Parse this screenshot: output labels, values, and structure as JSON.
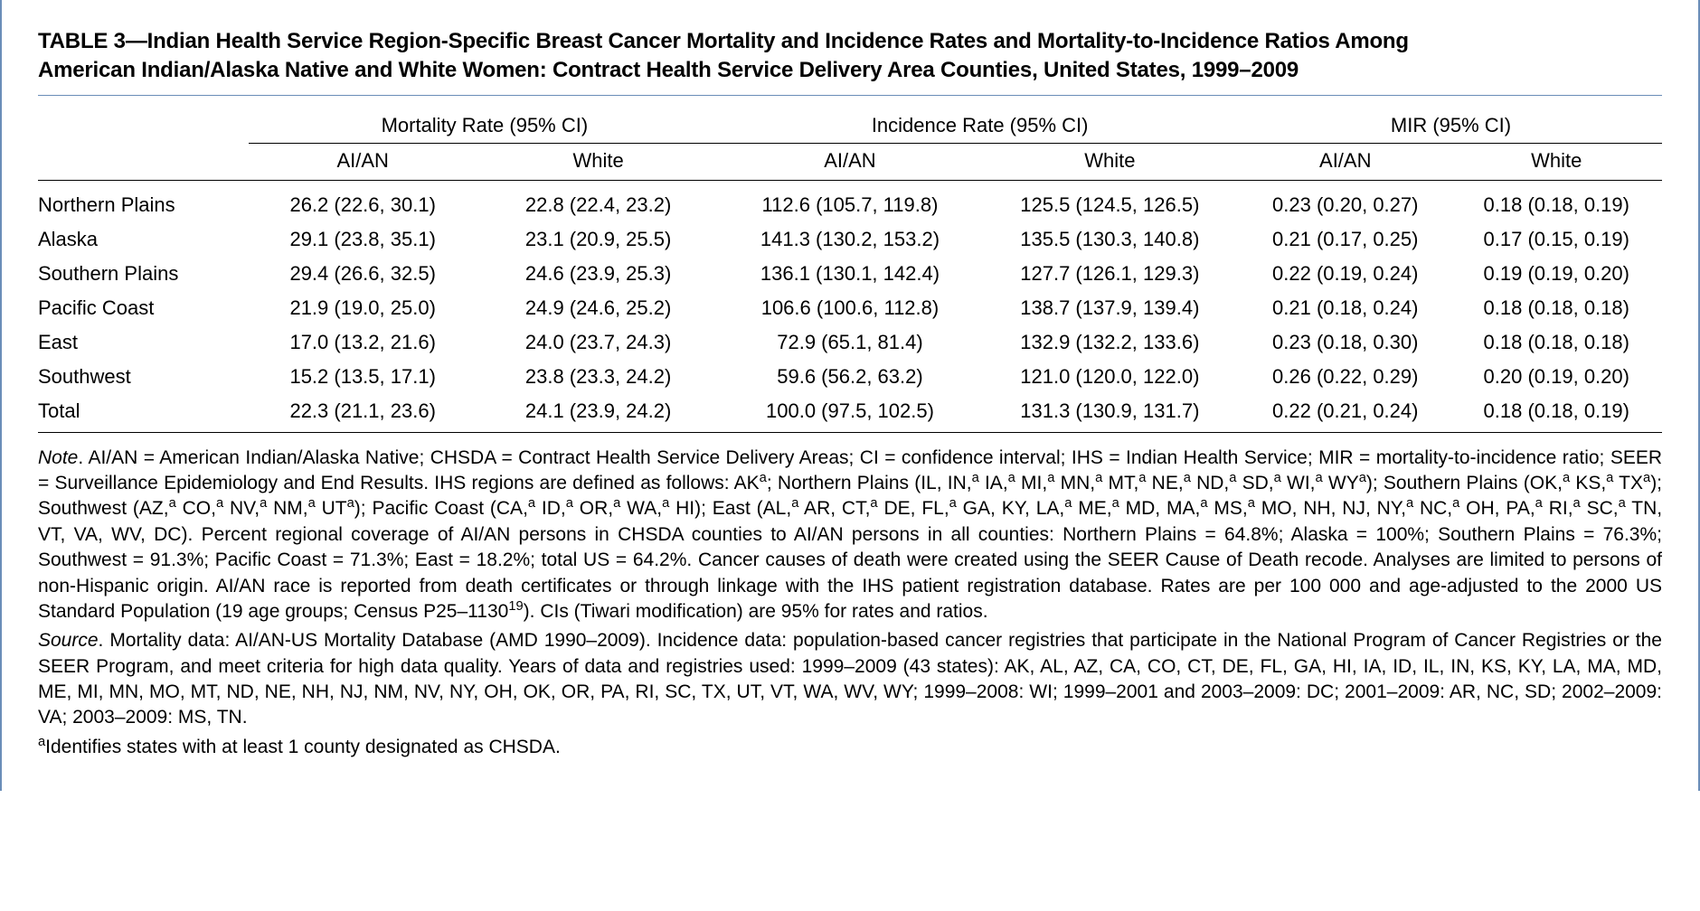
{
  "title_line1": "TABLE 3—Indian Health Service Region-Specific Breast Cancer Mortality and Incidence Rates and Mortality-to-Incidence Ratios Among",
  "title_line2": "American Indian/Alaska Native and White Women: Contract Health Service Delivery Area Counties, United States, 1999–2009",
  "headers": {
    "spanner1": "Mortality Rate (95% CI)",
    "spanner2": "Incidence Rate (95% CI)",
    "spanner3": "MIR (95% CI)",
    "sub_aian": "AI/AN",
    "sub_white": "White"
  },
  "rows": [
    {
      "region": "Northern Plains",
      "m_ai": "26.2 (22.6, 30.1)",
      "m_w": "22.8 (22.4, 23.2)",
      "i_ai": "112.6 (105.7, 119.8)",
      "i_w": "125.5 (124.5, 126.5)",
      "r_ai": "0.23 (0.20, 0.27)",
      "r_w": "0.18 (0.18, 0.19)"
    },
    {
      "region": "Alaska",
      "m_ai": "29.1 (23.8, 35.1)",
      "m_w": "23.1 (20.9, 25.5)",
      "i_ai": "141.3 (130.2, 153.2)",
      "i_w": "135.5 (130.3, 140.8)",
      "r_ai": "0.21 (0.17, 0.25)",
      "r_w": "0.17 (0.15, 0.19)"
    },
    {
      "region": "Southern Plains",
      "m_ai": "29.4 (26.6, 32.5)",
      "m_w": "24.6 (23.9, 25.3)",
      "i_ai": "136.1 (130.1, 142.4)",
      "i_w": "127.7 (126.1, 129.3)",
      "r_ai": "0.22 (0.19, 0.24)",
      "r_w": "0.19 (0.19, 0.20)"
    },
    {
      "region": "Pacific Coast",
      "m_ai": "21.9 (19.0, 25.0)",
      "m_w": "24.9 (24.6, 25.2)",
      "i_ai": "106.6 (100.6, 112.8)",
      "i_w": "138.7 (137.9, 139.4)",
      "r_ai": "0.21 (0.18, 0.24)",
      "r_w": "0.18 (0.18, 0.18)"
    },
    {
      "region": "East",
      "m_ai": "17.0 (13.2, 21.6)",
      "m_w": "24.0 (23.7, 24.3)",
      "i_ai": "72.9 (65.1, 81.4)",
      "i_w": "132.9 (132.2, 133.6)",
      "r_ai": "0.23 (0.18, 0.30)",
      "r_w": "0.18 (0.18, 0.18)"
    },
    {
      "region": "Southwest",
      "m_ai": "15.2 (13.5, 17.1)",
      "m_w": "23.8 (23.3, 24.2)",
      "i_ai": "59.6 (56.2, 63.2)",
      "i_w": "121.0 (120.0, 122.0)",
      "r_ai": "0.26 (0.22, 0.29)",
      "r_w": "0.20 (0.19, 0.20)"
    },
    {
      "region": "Total",
      "m_ai": "22.3 (21.1, 23.6)",
      "m_w": "24.1 (23.9, 24.2)",
      "i_ai": "100.0 (97.5, 102.5)",
      "i_w": "131.3 (130.9, 131.7)",
      "r_ai": "0.22 (0.21, 0.24)",
      "r_w": "0.18 (0.18, 0.19)"
    }
  ],
  "note_html": "<span class=\"lead\">Note</span>. AI/AN = American Indian/Alaska Native; CHSDA = Contract Health Service Delivery Areas; CI = confidence interval; IHS = Indian Health Service; MIR = mortality-to-incidence ratio; SEER = Surveillance Epidemiology and End Results. IHS regions are defined as follows: AK<sup>a</sup>; Northern Plains (IL, IN,<sup>a</sup> IA,<sup>a</sup> MI,<sup>a</sup> MN,<sup>a</sup> MT,<sup>a</sup> NE,<sup>a</sup> ND,<sup>a</sup> SD,<sup>a</sup> WI,<sup>a</sup> WY<sup>a</sup>); Southern Plains (OK,<sup>a</sup> KS,<sup>a</sup> TX<sup>a</sup>); Southwest (AZ,<sup>a</sup> CO,<sup>a</sup> NV,<sup>a</sup> NM,<sup>a</sup> UT<sup>a</sup>); Pacific Coast (CA,<sup>a</sup> ID,<sup>a</sup> OR,<sup>a</sup> WA,<sup>a</sup> HI); East (AL,<sup>a</sup> AR, CT,<sup>a</sup> DE, FL,<sup>a</sup> GA, KY, LA,<sup>a</sup> ME,<sup>a</sup> MD, MA,<sup>a</sup> MS,<sup>a</sup> MO, NH, NJ, NY,<sup>a</sup> NC,<sup>a</sup> OH, PA,<sup>a</sup> RI,<sup>a</sup> SC,<sup>a</sup> TN, VT, VA, WV, DC). Percent regional coverage of AI/AN persons in CHSDA counties to AI/AN persons in all counties: Northern Plains = 64.8%; Alaska = 100%; Southern Plains = 76.3%; Southwest = 91.3%; Pacific Coast = 71.3%; East = 18.2%; total US = 64.2%. Cancer causes of death were created using the SEER Cause of Death recode. Analyses are limited to persons of non-Hispanic origin. AI/AN race is reported from death certificates or through linkage with the IHS patient registration database. Rates are per 100 000 and age-adjusted to the 2000 US Standard Population (19 age groups; Census P25–1130<sup>19</sup>). CIs (Tiwari modification) are 95% for rates and ratios.",
  "source_html": "<span class=\"lead\">Source</span>. Mortality data: AI/AN-US Mortality Database (AMD 1990–2009). Incidence data: population-based cancer registries that participate in the National Program of Cancer Registries or the SEER Program, and meet criteria for high data quality. Years of data and registries used: 1999–2009 (43 states): AK, AL, AZ, CA, CO, CT, DE, FL, GA, HI, IA, ID, IL, IN, KS, KY, LA, MA, MD, ME, MI, MN, MO, MT, ND, NE, NH, NJ, NM, NV, NY, OH, OK, OR, PA, RI, SC, TX, UT, VT, WA, WV, WY; 1999–2008: WI; 1999–2001 and 2003–2009: DC; 2001–2009: AR, NC, SD; 2002–2009: VA; 2003–2009: MS, TN.",
  "footnote_html": "<sup>a</sup>Identifies states with at least 1 county designated as CHSDA.",
  "col_widths": [
    "13%",
    "14%",
    "15%",
    "16%",
    "16%",
    "13%",
    "13%"
  ]
}
